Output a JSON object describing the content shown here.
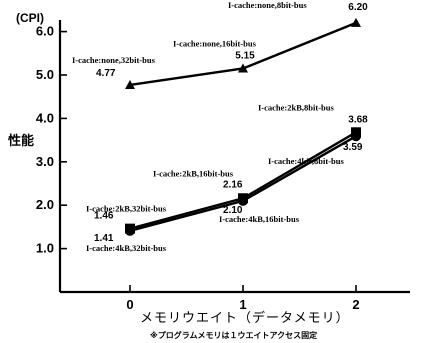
{
  "chart_data": {
    "type": "line",
    "title": "",
    "y_unit": "(CPI)",
    "ylabel": "性能",
    "xlabel": "メモリウエイト（データメモリ）",
    "footnote": "※プログラムメモリは１ウエイトアクセス固定",
    "x": [
      0,
      1,
      2
    ],
    "x_ticks": [
      "0",
      "1",
      "2"
    ],
    "ylim": [
      0,
      6.3
    ],
    "y_ticks": [
      "1.0",
      "2.0",
      "3.0",
      "4.0",
      "5.0",
      "6.0"
    ],
    "grid": false,
    "series": [
      {
        "marker": "triangle",
        "values": [
          4.77,
          5.15,
          6.2
        ],
        "value_labels": [
          "4.77",
          "5.15",
          "6.20"
        ],
        "point_labels": [
          "I-cache:none,32bit-bus",
          "I-cache:none,16bit-bus",
          "I-cache:none,8bit-bus"
        ]
      },
      {
        "marker": "square",
        "values": [
          1.46,
          2.16,
          3.68
        ],
        "value_labels": [
          "1.46",
          "2.16",
          "3.68"
        ],
        "point_labels": [
          "I-cache:2kB,32bit-bus",
          "I-cache:2kB,16bit-bus",
          "I-cache:2kB,8bit-bus"
        ]
      },
      {
        "marker": "circle",
        "values": [
          1.41,
          2.1,
          3.59
        ],
        "value_labels": [
          "1.41",
          "2.10",
          "3.59"
        ],
        "point_labels": [
          "I-cache:4kB,32bit-bus",
          "I-cache:4kB,16bit-bus",
          "I-cache:4kB,8bit-bus"
        ]
      }
    ]
  }
}
